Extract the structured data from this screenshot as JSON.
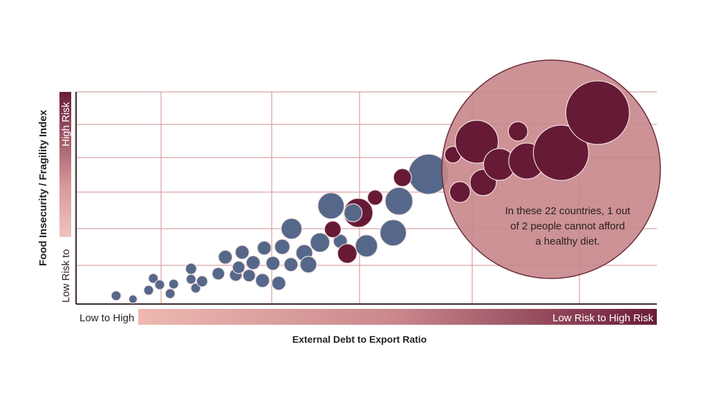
{
  "chart_data": {
    "type": "scatter",
    "subtype": "bubble",
    "title": "",
    "xlabel": "External Debt to Export Ratio",
    "ylabel": "Food Insecurity / Fragility Index",
    "x_scale_labels": {
      "low_end": "Low to High",
      "high_end": "Low Risk to High Risk"
    },
    "y_scale_labels": {
      "low_end": "Low Risk to",
      "high_end": "High Risk"
    },
    "xlim": [
      0,
      10
    ],
    "ylim": [
      0,
      10
    ],
    "grid": true,
    "legend": "none",
    "colors": {
      "blue": "#55688a",
      "red": "#661a36",
      "highlight": "#c7868a",
      "grid": "#dba5a5",
      "axis": "#3a2a30"
    },
    "annotation": {
      "lines": [
        "In these 22 countries, 1 out",
        "of 2 people cannot afford",
        "a healthy diet."
      ]
    },
    "highlight_region": {
      "x": 8.18,
      "y": 6.35,
      "size": 158
    },
    "points": [
      {
        "x": 0.69,
        "y": 0.39,
        "size": 7,
        "group": "blue"
      },
      {
        "x": 0.98,
        "y": 0.23,
        "size": 6,
        "group": "blue"
      },
      {
        "x": 1.25,
        "y": 0.65,
        "size": 7,
        "group": "blue"
      },
      {
        "x": 1.33,
        "y": 1.21,
        "size": 7,
        "group": "blue"
      },
      {
        "x": 1.44,
        "y": 0.91,
        "size": 7,
        "group": "blue"
      },
      {
        "x": 1.62,
        "y": 0.49,
        "size": 7,
        "group": "blue"
      },
      {
        "x": 1.68,
        "y": 0.94,
        "size": 7,
        "group": "blue"
      },
      {
        "x": 1.98,
        "y": 1.66,
        "size": 8,
        "group": "blue"
      },
      {
        "x": 1.98,
        "y": 1.17,
        "size": 7,
        "group": "blue"
      },
      {
        "x": 2.06,
        "y": 0.75,
        "size": 7,
        "group": "blue"
      },
      {
        "x": 2.17,
        "y": 1.07,
        "size": 8,
        "group": "blue"
      },
      {
        "x": 2.45,
        "y": 1.43,
        "size": 9,
        "group": "blue"
      },
      {
        "x": 2.57,
        "y": 2.21,
        "size": 10,
        "group": "blue"
      },
      {
        "x": 2.75,
        "y": 1.37,
        "size": 9,
        "group": "blue"
      },
      {
        "x": 2.8,
        "y": 1.73,
        "size": 9,
        "group": "blue"
      },
      {
        "x": 2.86,
        "y": 2.44,
        "size": 10,
        "group": "blue"
      },
      {
        "x": 2.98,
        "y": 1.34,
        "size": 9,
        "group": "blue"
      },
      {
        "x": 3.05,
        "y": 1.95,
        "size": 10,
        "group": "blue"
      },
      {
        "x": 3.21,
        "y": 1.11,
        "size": 10,
        "group": "blue"
      },
      {
        "x": 3.24,
        "y": 2.64,
        "size": 10,
        "group": "blue"
      },
      {
        "x": 3.39,
        "y": 1.92,
        "size": 10,
        "group": "blue"
      },
      {
        "x": 3.49,
        "y": 0.98,
        "size": 10,
        "group": "blue"
      },
      {
        "x": 3.55,
        "y": 2.7,
        "size": 11,
        "group": "blue"
      },
      {
        "x": 3.7,
        "y": 1.86,
        "size": 10,
        "group": "blue"
      },
      {
        "x": 3.71,
        "y": 3.55,
        "size": 15,
        "group": "blue"
      },
      {
        "x": 3.93,
        "y": 2.41,
        "size": 12,
        "group": "blue"
      },
      {
        "x": 4.0,
        "y": 1.86,
        "size": 12,
        "group": "blue"
      },
      {
        "x": 4.2,
        "y": 2.9,
        "size": 14,
        "group": "blue"
      },
      {
        "x": 4.39,
        "y": 4.63,
        "size": 19,
        "group": "blue"
      },
      {
        "x": 4.55,
        "y": 2.96,
        "size": 10,
        "group": "blue"
      },
      {
        "x": 4.86,
        "y": 4.3,
        "size": 21,
        "group": "red"
      },
      {
        "x": 4.77,
        "y": 4.3,
        "size": 13,
        "group": "blue"
      },
      {
        "x": 5.0,
        "y": 2.74,
        "size": 16,
        "group": "blue"
      },
      {
        "x": 5.46,
        "y": 3.36,
        "size": 19,
        "group": "blue"
      },
      {
        "x": 5.56,
        "y": 4.85,
        "size": 20,
        "group": "blue"
      },
      {
        "x": 6.07,
        "y": 6.12,
        "size": 29,
        "group": "blue"
      },
      {
        "x": 4.42,
        "y": 3.52,
        "size": 12,
        "group": "red"
      },
      {
        "x": 4.67,
        "y": 2.38,
        "size": 14,
        "group": "red"
      },
      {
        "x": 5.15,
        "y": 5.02,
        "size": 11,
        "group": "red"
      },
      {
        "x": 5.62,
        "y": 5.96,
        "size": 13,
        "group": "red"
      },
      {
        "x": 6.49,
        "y": 7.04,
        "size": 12,
        "group": "highlighted"
      },
      {
        "x": 6.9,
        "y": 7.65,
        "size": 31,
        "group": "highlighted"
      },
      {
        "x": 6.61,
        "y": 5.28,
        "size": 15,
        "group": "highlighted"
      },
      {
        "x": 7.01,
        "y": 5.73,
        "size": 19,
        "group": "highlighted"
      },
      {
        "x": 7.29,
        "y": 6.58,
        "size": 23,
        "group": "highlighted"
      },
      {
        "x": 7.61,
        "y": 8.14,
        "size": 14,
        "group": "highlighted"
      },
      {
        "x": 7.76,
        "y": 6.74,
        "size": 26,
        "group": "highlighted"
      },
      {
        "x": 8.35,
        "y": 7.13,
        "size": 40,
        "group": "highlighted"
      },
      {
        "x": 8.98,
        "y": 9.02,
        "size": 46,
        "group": "highlighted"
      }
    ]
  }
}
